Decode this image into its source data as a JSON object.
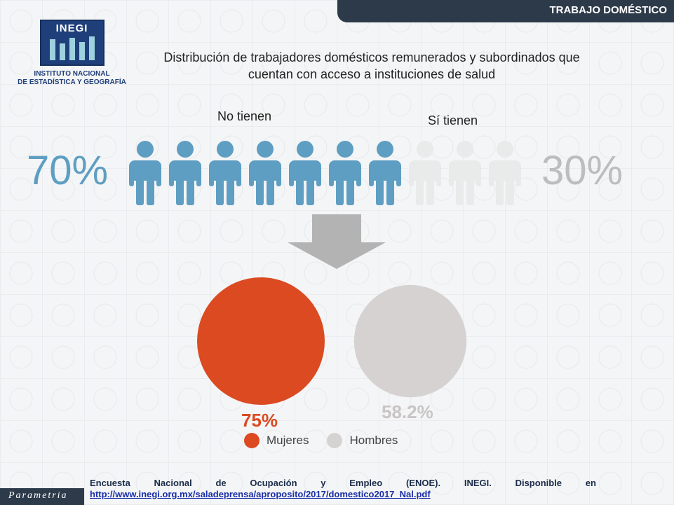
{
  "header": {
    "title": "TRABAJO DOMÉSTICO"
  },
  "logo": {
    "acronym": "INEGI",
    "line1": "INSTITUTO NACIONAL",
    "line2": "DE ESTADÍSTICA Y GEOGRAFÍA"
  },
  "watermark": "Parametria",
  "colors": {
    "header_bg": "#2d3a4a",
    "no_tienen": "#5e9ec2",
    "si_tienen": "#e9eaea",
    "mujeres": "#db4a21",
    "hombres": "#d6d2d2",
    "arrow": "#b3b3b3"
  },
  "chart_data": [
    {
      "type": "pictogram",
      "title": "Distribución de trabajadores domésticos remunerados y subordinados que cuentan con acceso a instituciones de salud",
      "total_icons": 10,
      "series": [
        {
          "name": "No tienen",
          "value": 70,
          "label": "70%",
          "icons": 7
        },
        {
          "name": "Sí tienen",
          "value": 30,
          "label": "30%",
          "icons": 3
        }
      ]
    },
    {
      "type": "bubble",
      "categories": [
        "Mujeres",
        "Hombres"
      ],
      "values": [
        75,
        58.2
      ],
      "labels": [
        "75%",
        "58.2%"
      ],
      "legend": "bottom"
    }
  ],
  "source": {
    "text": "Encuesta Nacional de Ocupación y Empleo (ENOE). INEGI. Disponible en",
    "words": [
      "Encuesta",
      "Nacional",
      "de",
      "Ocupación",
      "y",
      "Empleo",
      "(ENOE).",
      "INEGI.",
      "Disponible",
      "en"
    ],
    "url": "http://www.inegi.org.mx/saladeprensa/aproposito/2017/domestico2017_Nal.pdf"
  }
}
